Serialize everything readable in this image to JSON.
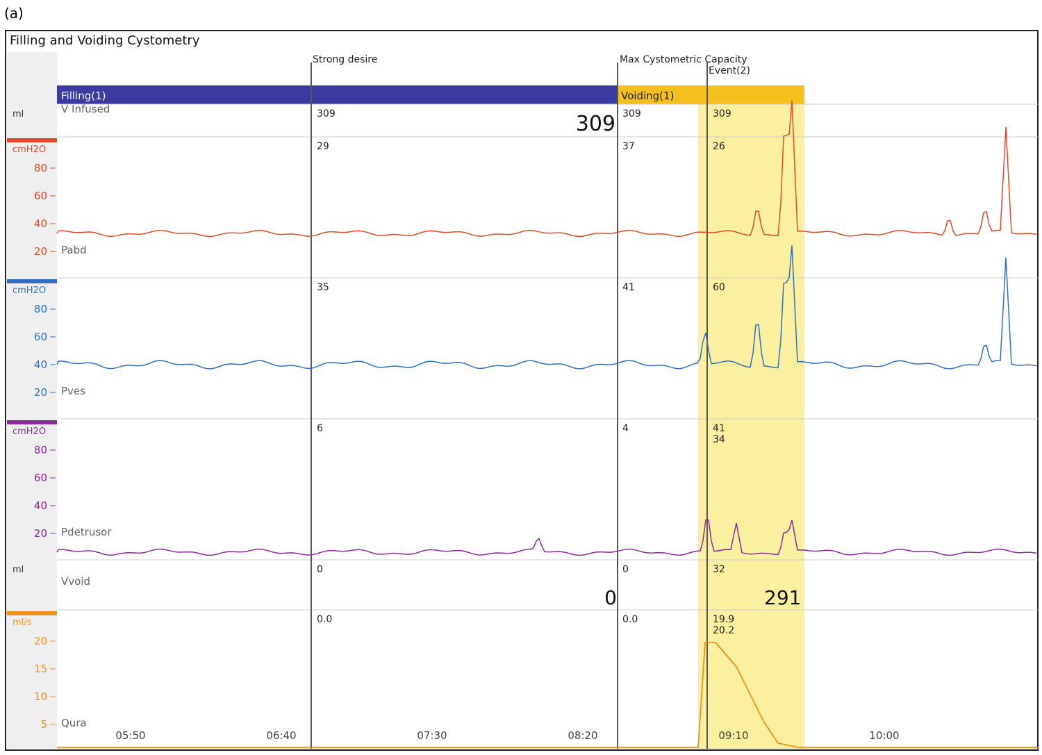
{
  "figure_label": "(a)",
  "title": "Filling and Voiding Cystometry",
  "bars": {
    "filling": "Filling(1)",
    "voiding": "Voiding(1)"
  },
  "events": {
    "strong": "Strong desire",
    "maxcap": "Max Cystometric Capacity",
    "event2": "Event(2)"
  },
  "channels": [
    {
      "id": "vinf",
      "name": "V Infused",
      "unit": "ml",
      "vals": [
        "309",
        "309",
        "309"
      ],
      "big": "309"
    },
    {
      "id": "pabd",
      "name": "Pabd",
      "unit": "cmH2O",
      "vals": [
        "29",
        "37",
        "26"
      ],
      "color": "#e04a2a"
    },
    {
      "id": "pves",
      "name": "Pves",
      "unit": "cmH2O",
      "vals": [
        "35",
        "41",
        "60"
      ],
      "color": "#2f6fbf"
    },
    {
      "id": "pdet",
      "name": "Pdetrusor",
      "unit": "cmH2O",
      "vals": [
        "6",
        "4",
        "41",
        "34"
      ],
      "color": "#8a2a9a"
    },
    {
      "id": "vvoid",
      "name": "Vvoid",
      "unit": "ml",
      "vals": [
        "0",
        "0",
        "32"
      ],
      "big": [
        "0",
        "291"
      ]
    },
    {
      "id": "qura",
      "name": "Qura",
      "unit": "ml/s",
      "vals": [
        "0.0",
        "0.0",
        "19.9",
        "20.2"
      ],
      "color": "#f0901a"
    }
  ],
  "chart_data": {
    "type": "line",
    "x_ticks": [
      "05:50",
      "06:40",
      "07:30",
      "08:20",
      "09:10",
      "10:00"
    ],
    "series": [
      {
        "name": "Pabd",
        "baseline": 34
      },
      {
        "name": "Pves",
        "baseline": 40
      },
      {
        "name": "Pdetrusor",
        "baseline": 6
      },
      {
        "name": "Qura",
        "peak": 20.2
      }
    ]
  }
}
